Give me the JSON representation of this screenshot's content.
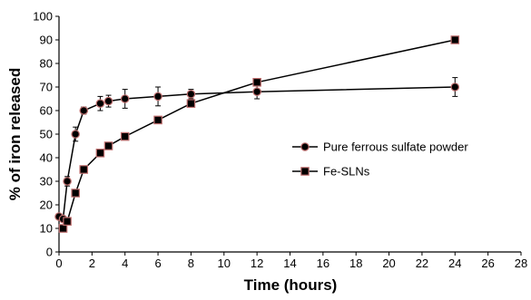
{
  "chart_data": {
    "type": "line",
    "title": "",
    "xlabel": "Time (hours)",
    "ylabel": "% of iron released",
    "xlim": [
      0,
      28
    ],
    "ylim": [
      0,
      100
    ],
    "x_ticks": [
      0,
      2,
      4,
      6,
      8,
      10,
      12,
      14,
      16,
      18,
      20,
      22,
      24,
      26,
      28
    ],
    "y_ticks": [
      0,
      10,
      20,
      30,
      40,
      50,
      60,
      70,
      80,
      90,
      100
    ],
    "grid": false,
    "legend_position": "right",
    "series": [
      {
        "name": "Pure ferrous sulfate powder",
        "marker": "circle",
        "marker_color": "#000000",
        "marker_edge_color": "#c07070",
        "line_color": "#000000",
        "x": [
          0,
          0.25,
          0.5,
          1,
          1.5,
          2.5,
          3,
          4,
          6,
          8,
          12,
          24
        ],
        "y": [
          15,
          14,
          30,
          50,
          60,
          63,
          64,
          65,
          66,
          67,
          68,
          70
        ],
        "error": [
          0,
          1,
          2,
          3,
          1.5,
          3,
          2.5,
          4,
          4,
          2,
          3,
          4
        ]
      },
      {
        "name": "Fe-SLNs",
        "marker": "square",
        "marker_color": "#000000",
        "marker_edge_color": "#c07070",
        "line_color": "#000000",
        "x": [
          0.25,
          0.5,
          1,
          1.5,
          2.5,
          3,
          4,
          6,
          8,
          12,
          24
        ],
        "y": [
          10,
          13,
          25,
          35,
          42,
          45,
          49,
          56,
          63,
          72,
          90
        ],
        "error": [
          0,
          1,
          1,
          1,
          1,
          1,
          1,
          1,
          1,
          1,
          1
        ]
      }
    ]
  }
}
